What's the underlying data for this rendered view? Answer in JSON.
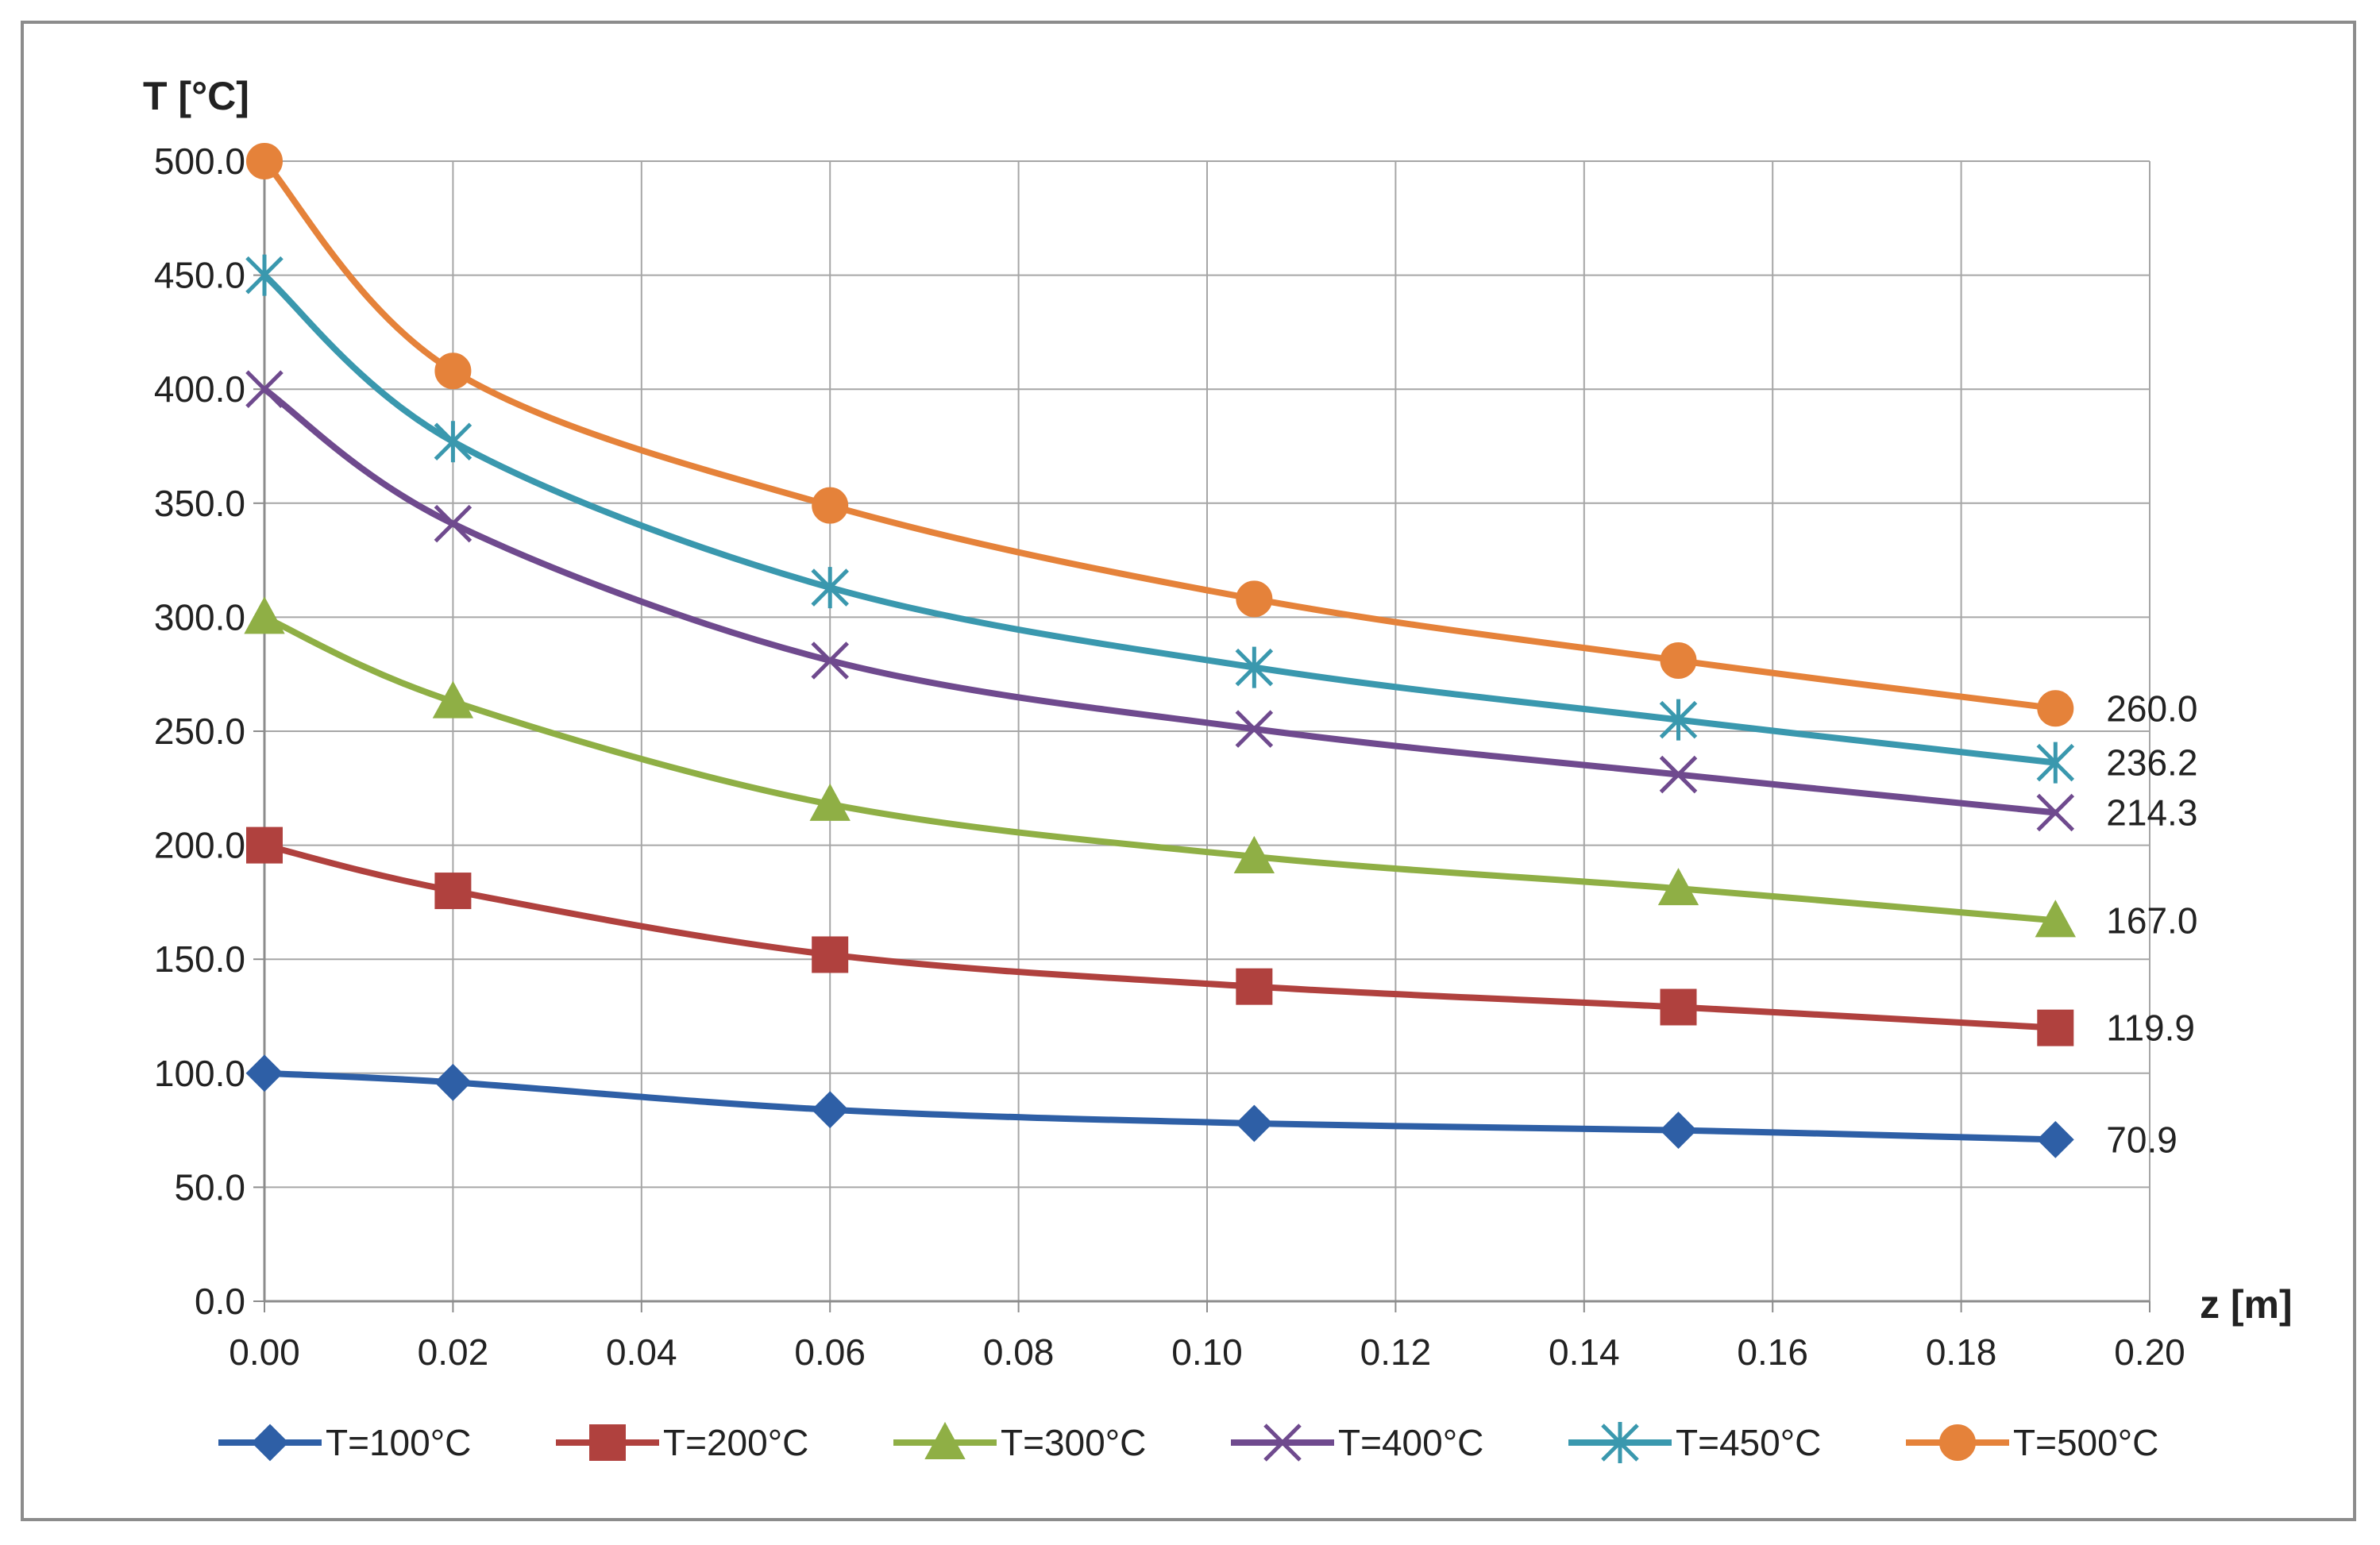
{
  "chart_data": {
    "type": "line",
    "title": "",
    "xlabel": "z [m]",
    "ylabel": "T [°C]",
    "xlim": [
      0,
      0.2
    ],
    "ylim": [
      0,
      500
    ],
    "x_ticks": [
      "0.00",
      "0.02",
      "0.04",
      "0.06",
      "0.08",
      "0.10",
      "0.12",
      "0.14",
      "0.16",
      "0.18",
      "0.20"
    ],
    "y_ticks": [
      "0.0",
      "50.0",
      "100.0",
      "150.0",
      "200.0",
      "250.0",
      "300.0",
      "350.0",
      "400.0",
      "450.0",
      "500.0"
    ],
    "grid": true,
    "legend_position": "bottom",
    "x": [
      0.0,
      0.02,
      0.06,
      0.105,
      0.15,
      0.19
    ],
    "series": [
      {
        "name": "T=100°C",
        "color": "#2e5fa6",
        "marker": "diamond",
        "values": [
          100.0,
          96.0,
          84.0,
          78.0,
          75.0,
          70.9
        ],
        "end_label": "70.9"
      },
      {
        "name": "T=200°C",
        "color": "#b0413e",
        "marker": "square",
        "values": [
          200.0,
          180.0,
          152.0,
          138.0,
          129.0,
          119.9
        ],
        "end_label": "119.9"
      },
      {
        "name": "T=300°C",
        "color": "#8faf45",
        "marker": "triangle",
        "values": [
          300.0,
          263.0,
          218.0,
          195.0,
          181.0,
          167.0
        ],
        "end_label": "167.0"
      },
      {
        "name": "T=400°C",
        "color": "#6f4a8e",
        "marker": "x",
        "values": [
          400.0,
          341.0,
          281.0,
          251.0,
          231.0,
          214.3
        ],
        "end_label": "214.3"
      },
      {
        "name": "T=450°C",
        "color": "#3a98ae",
        "marker": "star",
        "values": [
          450.0,
          377.0,
          313.0,
          278.0,
          255.0,
          236.2
        ],
        "end_label": "236.2"
      },
      {
        "name": "T=500°C",
        "color": "#e5823a",
        "marker": "circle",
        "values": [
          500.0,
          408.0,
          349.0,
          308.0,
          281.0,
          260.0
        ],
        "end_label": "260.0"
      }
    ]
  }
}
